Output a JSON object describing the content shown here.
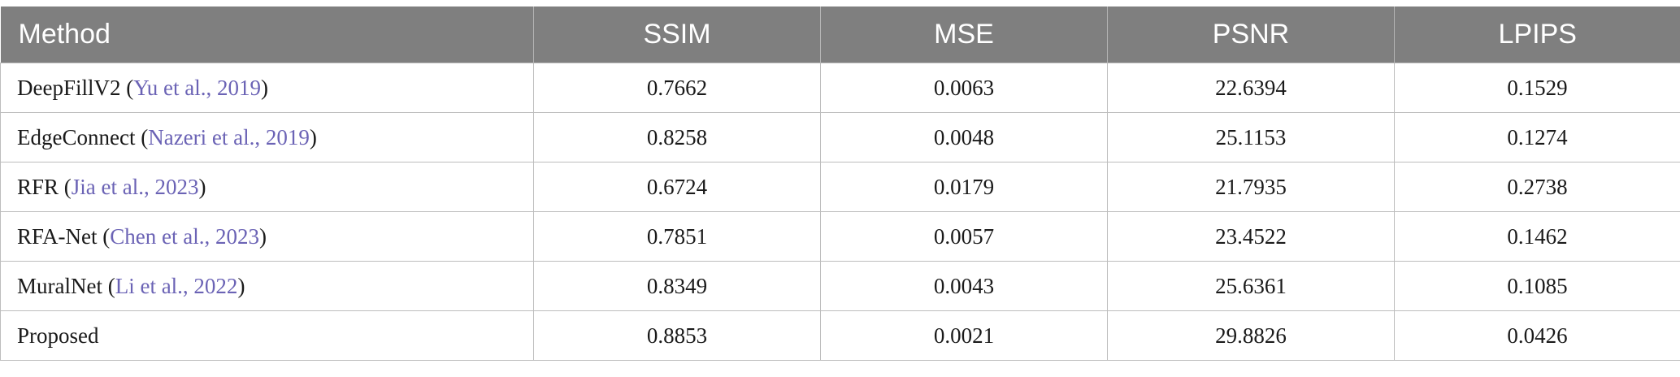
{
  "table": {
    "headers": [
      "Method",
      "SSIM",
      "MSE",
      "PSNR",
      "LPIPS"
    ],
    "rows": [
      {
        "method": "DeepFillV2",
        "open": " (",
        "cite": "Yu et al., 2019",
        "close": ")",
        "ssim": "0.7662",
        "mse": "0.0063",
        "psnr": "22.6394",
        "lpips": "0.1529"
      },
      {
        "method": "EdgeConnect",
        "open": " (",
        "cite": "Nazeri et al., 2019",
        "close": ")",
        "ssim": "0.8258",
        "mse": "0.0048",
        "psnr": "25.1153",
        "lpips": "0.1274"
      },
      {
        "method": "RFR",
        "open": " (",
        "cite": "Jia et al., 2023",
        "close": ")",
        "ssim": "0.6724",
        "mse": "0.0179",
        "psnr": "21.7935",
        "lpips": "0.2738"
      },
      {
        "method": "RFA-Net",
        "open": " (",
        "cite": "Chen et al., 2023",
        "close": ")",
        "ssim": "0.7851",
        "mse": "0.0057",
        "psnr": "23.4522",
        "lpips": "0.1462"
      },
      {
        "method": "MuralNet",
        "open": " (",
        "cite": "Li et al., 2022",
        "close": ")",
        "ssim": "0.8349",
        "mse": "0.0043",
        "psnr": "25.6361",
        "lpips": "0.1085"
      },
      {
        "method": "Proposed",
        "open": "",
        "cite": "",
        "close": "",
        "ssim": "0.8853",
        "mse": "0.0021",
        "psnr": "29.8826",
        "lpips": "0.0426"
      }
    ]
  },
  "colors": {
    "header_bg": "#7f7f7f",
    "citation": "#6b63b5"
  }
}
